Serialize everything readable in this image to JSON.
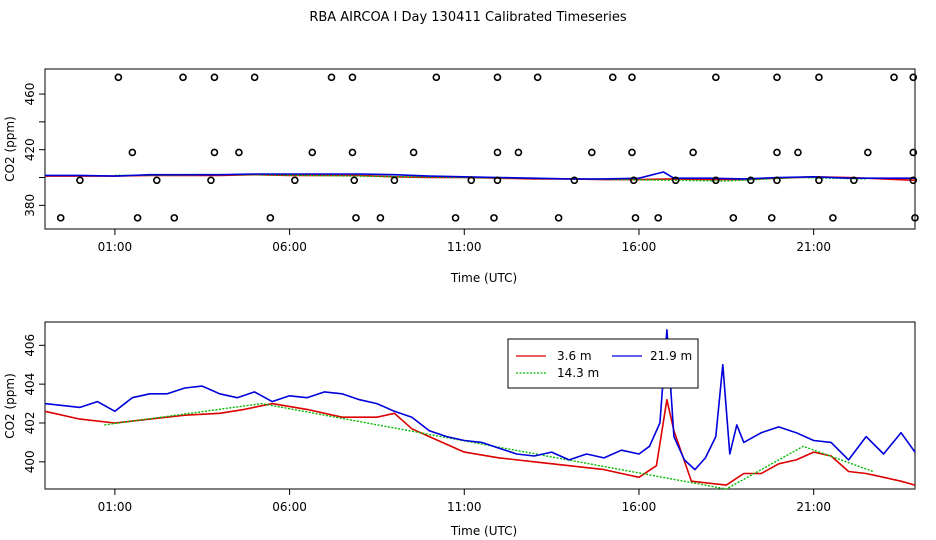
{
  "title": "RBA AIRCOA I  Day 130411  Calibrated Timeseries",
  "colors": {
    "red": "#dd0000",
    "green": "#00bb00",
    "blue": "#0000dd",
    "black": "#000000"
  },
  "chart_data": [
    {
      "type": "scatter",
      "xlabel": "Time (UTC)",
      "ylabel": "CO2 (ppm)",
      "xlim": [
        -1.0,
        23.9
      ],
      "ylim": [
        363,
        478
      ],
      "xtick_values": [
        1,
        6,
        11,
        16,
        21
      ],
      "xtick_labels": [
        "01:00",
        "06:00",
        "11:00",
        "16:00",
        "21:00"
      ],
      "ytick_values": [
        380,
        420,
        460
      ],
      "ytick_labels": [
        "380",
        "420",
        "460"
      ],
      "points": {
        "x": [
          1.1,
          2.95,
          3.85,
          5.0,
          7.2,
          7.8,
          10.2,
          11.95,
          13.1,
          15.25,
          15.8,
          18.2,
          19.95,
          21.15,
          23.3,
          23.85,
          1.5,
          3.85,
          4.55,
          6.65,
          7.8,
          9.55,
          11.95,
          12.55,
          14.65,
          15.8,
          17.55,
          19.95,
          20.55,
          22.55,
          23.85,
          0.0,
          2.2,
          3.75,
          6.15,
          7.85,
          9.0,
          11.2,
          11.95,
          14.15,
          15.85,
          17.05,
          18.2,
          19.2,
          19.95,
          21.15,
          22.15,
          23.85,
          -0.55,
          1.65,
          2.7,
          5.45,
          7.9,
          8.6,
          10.75,
          11.85,
          13.7,
          15.9,
          16.55,
          18.7,
          19.8,
          21.55,
          23.9
        ],
        "y": [
          472,
          472,
          472,
          472,
          472,
          472,
          472,
          472,
          472,
          472,
          472,
          472,
          472,
          472,
          472,
          472,
          418,
          418,
          418,
          418,
          418,
          418,
          418,
          418,
          418,
          418,
          418,
          418,
          418,
          418,
          418,
          398,
          398,
          398,
          398,
          398,
          398,
          398,
          398,
          398,
          398,
          398,
          398,
          398,
          398,
          398,
          398,
          398,
          371,
          371,
          371,
          371,
          371,
          371,
          371,
          371,
          371,
          371,
          371,
          371,
          371,
          371,
          371
        ]
      },
      "series": [
        {
          "name": "3.6 m",
          "color": "#dd0000",
          "x": [
            -1.0,
            0.0,
            1.0,
            2.0,
            3.0,
            4.0,
            5.0,
            6.0,
            7.0,
            8.0,
            9.0,
            10.0,
            11.0,
            12.0,
            13.0,
            14.0,
            15.0,
            16.0,
            17.0,
            18.0,
            19.0,
            20.0,
            21.0,
            22.0,
            23.0,
            23.9
          ],
          "values": [
            401,
            401,
            401,
            401.5,
            401.5,
            401.5,
            402,
            401.5,
            401.5,
            401.5,
            400.5,
            400,
            400,
            399.5,
            399,
            399,
            398.5,
            398.5,
            399,
            398.5,
            398.5,
            399.5,
            400.5,
            400,
            399,
            398
          ]
        },
        {
          "name": "14.3 m",
          "color": "#00bb00",
          "x": [
            1.0,
            5.0,
            18.5,
            20.5,
            22.5
          ],
          "values": [
            401.5,
            402,
            397.5,
            400,
            399
          ]
        },
        {
          "name": "21.9 m",
          "color": "#0000dd",
          "x": [
            -1.0,
            0.0,
            1.0,
            2.0,
            3.0,
            4.0,
            5.0,
            6.0,
            7.0,
            8.0,
            9.0,
            10.0,
            11.0,
            12.0,
            13.0,
            14.0,
            15.0,
            16.0,
            16.7,
            17.0,
            18.0,
            19.0,
            20.0,
            21.0,
            22.0,
            23.0,
            23.9
          ],
          "values": [
            401.5,
            401.5,
            401,
            402,
            402,
            402,
            402.5,
            402.5,
            402.5,
            402.5,
            402,
            401,
            400.5,
            400,
            399.5,
            399,
            399,
            399.5,
            404,
            399.5,
            399.5,
            399,
            400,
            400.5,
            399.5,
            399.5,
            399.5
          ]
        }
      ]
    },
    {
      "type": "line",
      "xlabel": "Time (UTC)",
      "ylabel": "CO2 (ppm)",
      "xlim": [
        -1.0,
        23.9
      ],
      "ylim": [
        398.6,
        407.2
      ],
      "xtick_values": [
        1,
        6,
        11,
        16,
        21
      ],
      "xtick_labels": [
        "01:00",
        "06:00",
        "11:00",
        "16:00",
        "21:00"
      ],
      "ytick_values": [
        400,
        402,
        404,
        406
      ],
      "ytick_labels": [
        "400",
        "402",
        "404",
        "406"
      ],
      "legend": {
        "position": "top-center",
        "entries": [
          "3.6 m",
          "21.9 m",
          "14.3 m"
        ]
      },
      "series": [
        {
          "name": "3.6 m",
          "color": "#dd0000",
          "x": [
            -1.0,
            0.0,
            1.0,
            2.0,
            3.0,
            4.0,
            4.7,
            5.5,
            6.5,
            7.5,
            8.5,
            9.0,
            9.5,
            10.0,
            11.0,
            12.0,
            13.0,
            14.0,
            15.0,
            16.0,
            16.5,
            16.8,
            17.0,
            17.5,
            18.0,
            18.5,
            19.0,
            19.5,
            20.0,
            20.5,
            21.0,
            21.5,
            22.0,
            22.5,
            23.0,
            23.5,
            23.9
          ],
          "values": [
            402.6,
            402.2,
            402.0,
            402.2,
            402.4,
            402.5,
            402.7,
            403.0,
            402.7,
            402.3,
            402.3,
            402.5,
            401.7,
            401.3,
            400.5,
            400.2,
            400.0,
            399.8,
            399.6,
            399.2,
            399.8,
            403.2,
            401.6,
            399.0,
            398.9,
            398.8,
            399.4,
            399.4,
            399.9,
            400.1,
            400.5,
            400.3,
            399.5,
            399.4,
            399.2,
            399.0,
            398.8
          ]
        },
        {
          "name": "14.3 m",
          "color": "#00bb00",
          "x": [
            0.7,
            5.2,
            18.5,
            20.7,
            22.7
          ],
          "values": [
            401.9,
            403.0,
            398.6,
            400.8,
            399.5
          ]
        },
        {
          "name": "21.9 m",
          "color": "#0000dd",
          "x": [
            -1.0,
            0.0,
            0.5,
            1.0,
            1.5,
            2.0,
            2.5,
            3.0,
            3.5,
            4.0,
            4.5,
            5.0,
            5.5,
            6.0,
            6.5,
            7.0,
            7.5,
            8.0,
            8.5,
            9.0,
            9.5,
            10.0,
            10.5,
            11.0,
            11.5,
            12.0,
            12.5,
            13.0,
            13.5,
            14.0,
            14.5,
            15.0,
            15.5,
            16.0,
            16.3,
            16.6,
            16.8,
            17.0,
            17.3,
            17.6,
            17.9,
            18.2,
            18.4,
            18.6,
            18.8,
            19.0,
            19.5,
            20.0,
            20.5,
            21.0,
            21.5,
            22.0,
            22.5,
            23.0,
            23.5,
            23.9
          ],
          "values": [
            403.0,
            402.8,
            403.1,
            402.6,
            403.3,
            403.5,
            403.5,
            403.8,
            403.9,
            403.5,
            403.3,
            403.6,
            403.1,
            403.4,
            403.3,
            403.6,
            403.5,
            403.2,
            403.0,
            402.6,
            402.3,
            401.6,
            401.3,
            401.1,
            401.0,
            400.7,
            400.4,
            400.3,
            400.5,
            400.1,
            400.4,
            400.2,
            400.6,
            400.4,
            400.8,
            402.0,
            406.8,
            401.3,
            400.1,
            399.6,
            400.2,
            401.3,
            405.0,
            400.4,
            401.9,
            401.0,
            401.5,
            401.8,
            401.5,
            401.1,
            401.0,
            400.1,
            401.3,
            400.4,
            401.5,
            400.5
          ]
        }
      ]
    }
  ]
}
